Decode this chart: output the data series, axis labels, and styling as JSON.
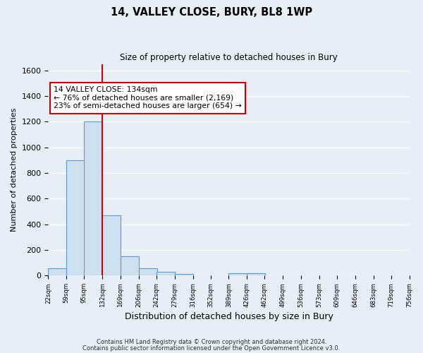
{
  "title": "14, VALLEY CLOSE, BURY, BL8 1WP",
  "subtitle": "Size of property relative to detached houses in Bury",
  "xlabel": "Distribution of detached houses by size in Bury",
  "ylabel": "Number of detached properties",
  "bin_edges": [
    22,
    59,
    95,
    132,
    169,
    206,
    242,
    279,
    316,
    352,
    389,
    426,
    462,
    499,
    536,
    573,
    609,
    646,
    683,
    719,
    756
  ],
  "bin_counts": [
    55,
    900,
    1200,
    470,
    150,
    60,
    30,
    15,
    0,
    0,
    20,
    20,
    0,
    0,
    0,
    0,
    0,
    0,
    0,
    0
  ],
  "bar_color": "#cce0f0",
  "bar_edge_color": "#5b9bd5",
  "vline_x": 132,
  "vline_color": "#cc0000",
  "annotation_line1": "14 VALLEY CLOSE: 134sqm",
  "annotation_line2": "← 76% of detached houses are smaller (2,169)",
  "annotation_line3": "23% of semi-detached houses are larger (654) →",
  "annotation_box_color": "white",
  "annotation_box_edge_color": "#cc0000",
  "ylim": [
    0,
    1650
  ],
  "yticks": [
    0,
    200,
    400,
    600,
    800,
    1000,
    1200,
    1400,
    1600
  ],
  "tick_labels": [
    "22sqm",
    "59sqm",
    "95sqm",
    "132sqm",
    "169sqm",
    "206sqm",
    "242sqm",
    "279sqm",
    "316sqm",
    "352sqm",
    "389sqm",
    "426sqm",
    "462sqm",
    "499sqm",
    "536sqm",
    "573sqm",
    "609sqm",
    "646sqm",
    "683sqm",
    "719sqm",
    "756sqm"
  ],
  "footer_text1": "Contains HM Land Registry data © Crown copyright and database right 2024.",
  "footer_text2": "Contains public sector information licensed under the Open Government Licence v3.0.",
  "background_color": "#e8eef5",
  "plot_bg_color": "#e8eef5",
  "grid_color": "#ffffff"
}
